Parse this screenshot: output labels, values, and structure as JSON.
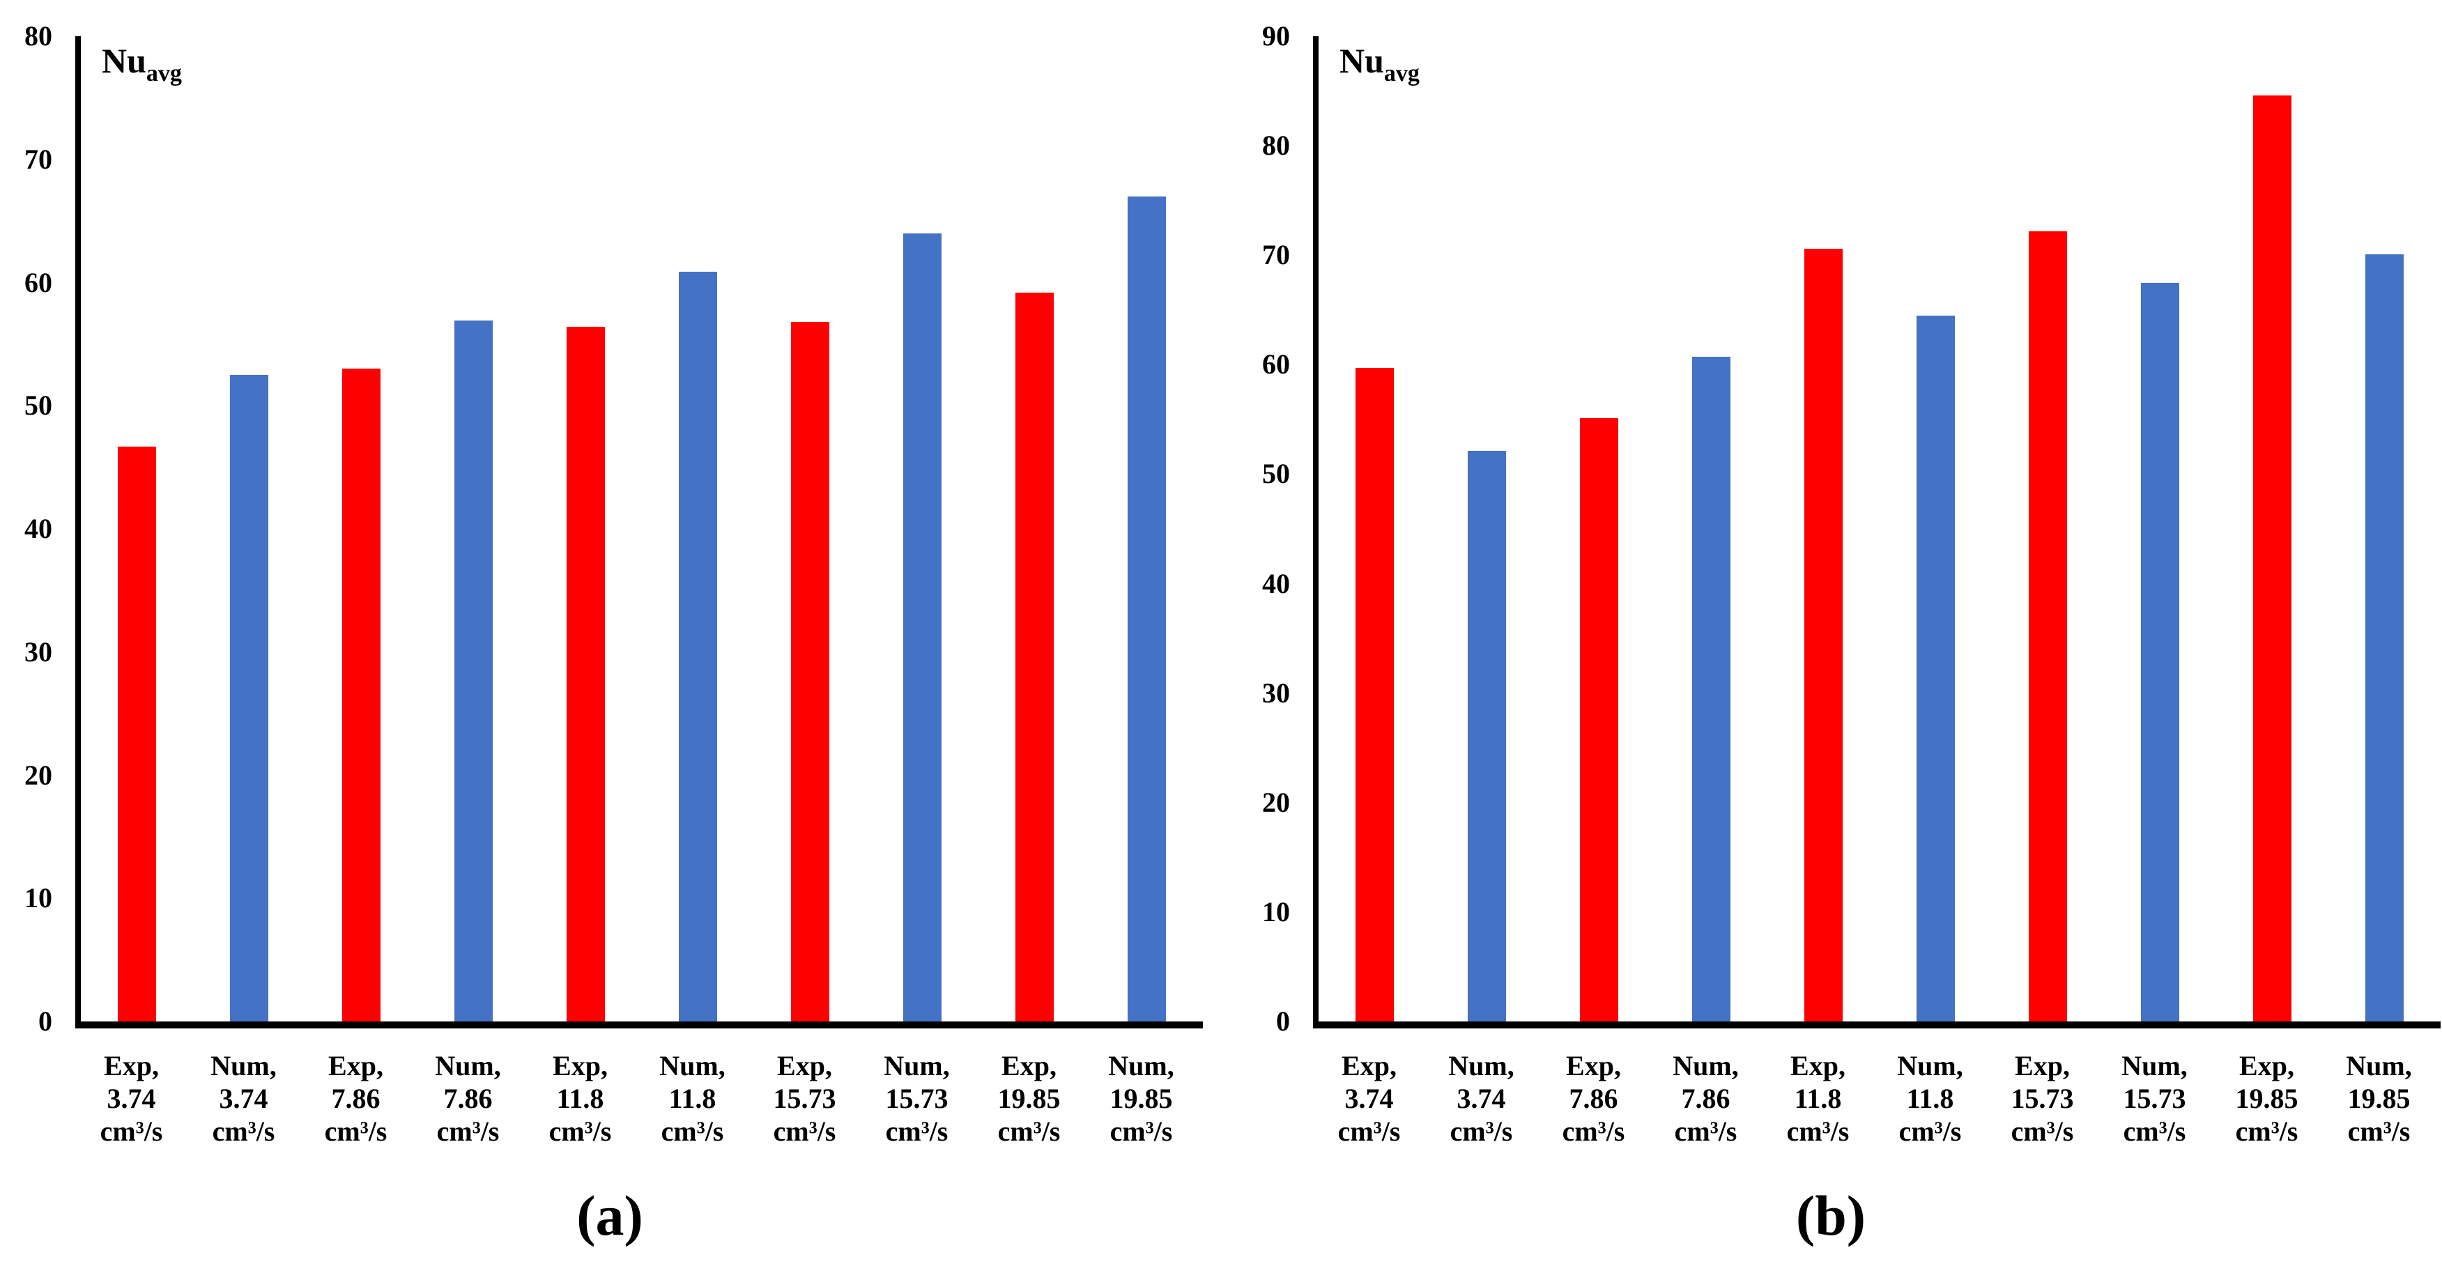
{
  "figure": {
    "background": "#ffffff",
    "text_color": "#000000"
  },
  "chart_data": [
    {
      "id": "a",
      "type": "bar",
      "caption": "(a)",
      "y_axis_title": {
        "text": "Nu",
        "subscript": "avg"
      },
      "ylim": [
        0,
        80
      ],
      "ytick_step": 10,
      "yticks": [
        0,
        10,
        20,
        30,
        40,
        50,
        60,
        70,
        80
      ],
      "grid": false,
      "legend": "none",
      "bar_colors": {
        "exp": "#ff0000",
        "num": "#4472c4"
      },
      "categories": [
        "Exp,\n3.74\ncm³/s",
        "Num,\n3.74\ncm³/s",
        "Exp,\n7.86\ncm³/s",
        "Num,\n7.86\ncm³/s",
        "Exp,\n11.8\ncm³/s",
        "Num,\n11.8\ncm³/s",
        "Exp,\n15.73\ncm³/s",
        "Num,\n15.73\ncm³/s",
        "Exp,\n19.85\ncm³/s",
        "Num,\n19.85\ncm³/s"
      ],
      "values": [
        46.7,
        52.5,
        53.0,
        56.9,
        56.4,
        60.9,
        56.8,
        64.0,
        59.2,
        67.0
      ],
      "series": [
        {
          "name": "Exp",
          "color": "#ff0000",
          "values": [
            46.7,
            53.0,
            56.4,
            56.8,
            59.2
          ]
        },
        {
          "name": "Num",
          "color": "#4472c4",
          "values": [
            52.5,
            56.9,
            60.9,
            64.0,
            67.0
          ]
        }
      ],
      "flow_rates_cm3_per_s": [
        "3.74",
        "7.86",
        "11.8",
        "15.73",
        "19.85"
      ]
    },
    {
      "id": "b",
      "type": "bar",
      "caption": "(b)",
      "y_axis_title": {
        "text": "Nu",
        "subscript": "avg"
      },
      "ylim": [
        0,
        90
      ],
      "ytick_step": 10,
      "yticks": [
        0,
        10,
        20,
        30,
        40,
        50,
        60,
        70,
        80,
        90
      ],
      "grid": false,
      "legend": "none",
      "bar_colors": {
        "exp": "#ff0000",
        "num": "#4472c4"
      },
      "categories": [
        "Exp,\n3.74\ncm³/s",
        "Num,\n3.74\ncm³/s",
        "Exp,\n7.86\ncm³/s",
        "Num,\n7.86\ncm³/s",
        "Exp,\n11.8\ncm³/s",
        "Num,\n11.8\ncm³/s",
        "Exp,\n15.73\ncm³/s",
        "Num,\n15.73\ncm³/s",
        "Exp,\n19.85\ncm³/s",
        "Num,\n19.85\ncm³/s"
      ],
      "values": [
        59.7,
        52.1,
        55.1,
        60.7,
        70.6,
        64.5,
        72.2,
        67.5,
        84.6,
        70.1
      ],
      "series": [
        {
          "name": "Exp",
          "color": "#ff0000",
          "values": [
            59.7,
            55.1,
            70.6,
            72.2,
            84.6
          ]
        },
        {
          "name": "Num",
          "color": "#4472c4",
          "values": [
            52.1,
            60.7,
            64.5,
            67.5,
            70.1
          ]
        }
      ],
      "flow_rates_cm3_per_s": [
        "3.74",
        "7.86",
        "11.8",
        "15.73",
        "19.85"
      ]
    }
  ]
}
